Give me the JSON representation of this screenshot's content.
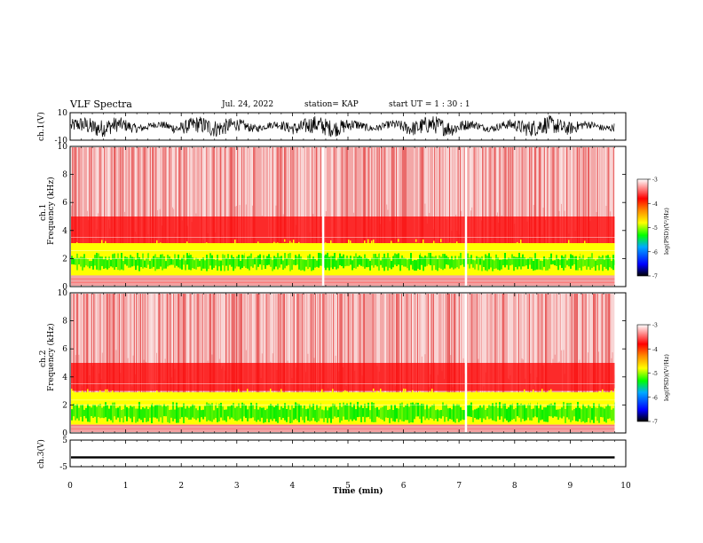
{
  "header": {
    "title": "VLF Spectra",
    "date": "Jul. 24, 2022",
    "station": "station= KAP",
    "start": "start  UT =   1 : 30 : 1"
  },
  "labels": {
    "ch1_wave": "ch.1(V)",
    "ch1_spec_a": "ch.1",
    "ch1_spec_b": "Frequency (kHz)",
    "ch2_spec_a": "ch.2",
    "ch2_spec_b": "Frequency (kHz)",
    "ch3_wave": "ch.3(V)",
    "xlabel": "Time (min)",
    "colorbar1": "log(PSD)(V²/Hz)",
    "colorbar2": "log(PSD)(V²/Hz)"
  },
  "colors": {
    "dense": "#ff0000",
    "mid": "#ffff00",
    "band": "#00ee00",
    "sparse": "#ffffff",
    "colorbar": [
      "#000000",
      "#0000ff",
      "#00aaff",
      "#00ff00",
      "#ffff00",
      "#ff8800",
      "#ff0000",
      "#ffffff"
    ]
  },
  "chart_data": [
    {
      "type": "line",
      "name": "ch1-waveform",
      "ylabel": "ch.1(V)",
      "xlim": [
        0,
        10
      ],
      "ylim": [
        -10,
        10
      ],
      "yticks": [
        -10,
        10
      ],
      "data_end_min": 9.8,
      "mean_envelope": 6
    },
    {
      "type": "heatmap",
      "name": "ch1-spectrogram",
      "ylabel": "Frequency (kHz)",
      "xlim": [
        0,
        10
      ],
      "ylim": [
        0,
        10
      ],
      "yticks": [
        0,
        2,
        4,
        6,
        8,
        10
      ],
      "data_end_min": 9.8,
      "band_low_khz": [
        0.8,
        2.5
      ],
      "band_peak_khz": [
        1.6,
        2.0
      ],
      "white_gaps_min": [
        4.55,
        7.12
      ],
      "colorbar": {
        "min": -7,
        "max": -3,
        "ticks": [
          -7,
          -6,
          -5,
          -4,
          -3
        ]
      }
    },
    {
      "type": "heatmap",
      "name": "ch2-spectrogram",
      "ylabel": "Frequency (kHz)",
      "xlim": [
        0,
        10
      ],
      "ylim": [
        0,
        10
      ],
      "yticks": [
        0,
        2,
        4,
        6,
        8,
        10
      ],
      "data_end_min": 9.8,
      "band_low_khz": [
        0.6,
        2.3
      ],
      "band_peak_khz": [
        1.2,
        1.8
      ],
      "white_gaps_min": [
        7.12
      ],
      "colorbar": {
        "min": -7,
        "max": -3,
        "ticks": [
          -7,
          -6,
          -5,
          -4,
          -3
        ]
      }
    },
    {
      "type": "line",
      "name": "ch3-waveform",
      "ylabel": "ch.3(V)",
      "xlim": [
        0,
        10
      ],
      "ylim": [
        -5,
        5
      ],
      "yticks": [
        -5,
        5
      ],
      "data_end_min": 9.8,
      "level": -1.5
    }
  ],
  "xaxis": {
    "label": "Time (min)",
    "ticks": [
      0,
      1,
      2,
      3,
      4,
      5,
      6,
      7,
      8,
      9,
      10
    ]
  }
}
